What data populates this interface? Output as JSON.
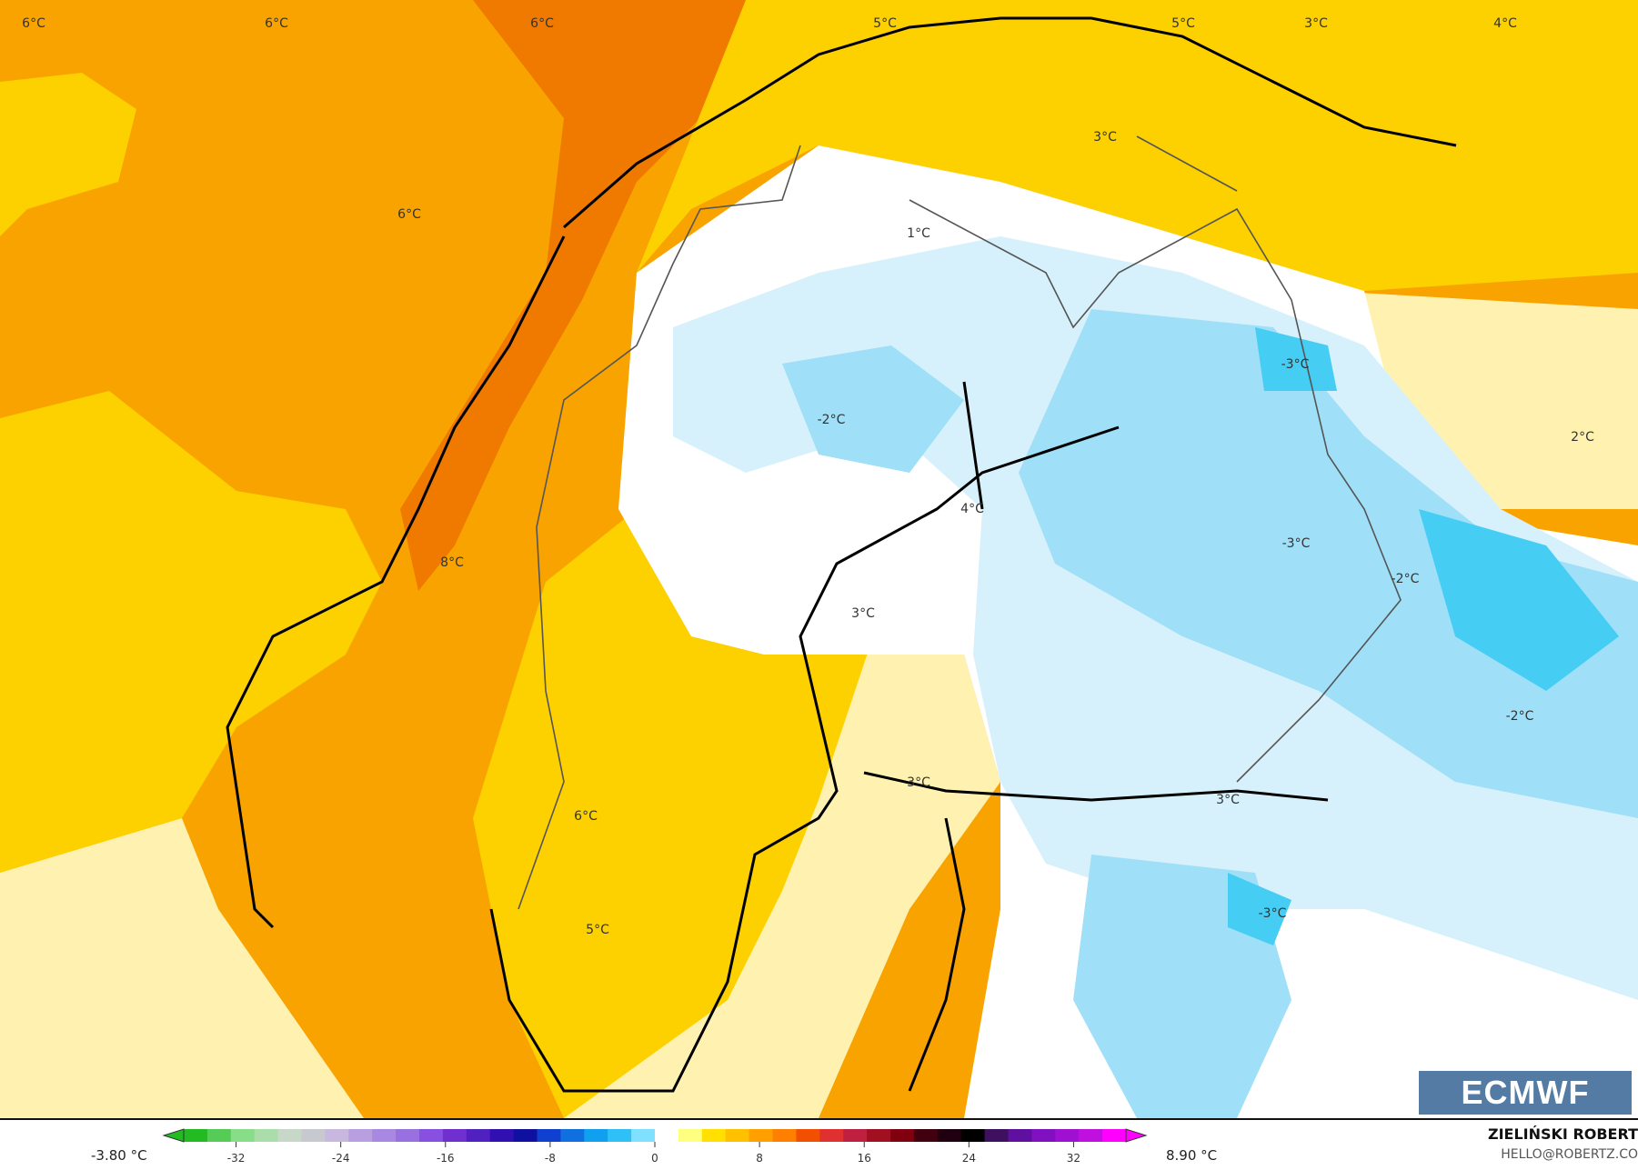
{
  "map": {
    "variable_unit": "°C",
    "colors": {
      "dark_orange": "#f07a00",
      "orange": "#f9a300",
      "yellow": "#fdd000",
      "pale_yellow": "#fff2b0",
      "white": "#ffffff",
      "light_blue": "#d6f1fc",
      "blue": "#9fdff7",
      "cyan": "#45cdf4",
      "coast": "#000000",
      "border": "#555555"
    },
    "labels": [
      "6°C",
      "6°C",
      "6°C",
      "5°C",
      "5°C",
      "3°C",
      "4°C",
      "3°C",
      "6°C",
      "1°C",
      "-3°C",
      "-2°C",
      "2°C",
      "4°C",
      "-3°C",
      "-2°C",
      "8°C",
      "3°C",
      "-2°C",
      "3°C",
      "6°C",
      "3°C",
      "5°C",
      "-3°C"
    ]
  },
  "logo": "ECMWF",
  "colorbar": {
    "min_label": "-3.80 °C",
    "max_label": "8.90 °C",
    "ticks": [
      "-32",
      "-24",
      "-16",
      "-8",
      "0",
      "8",
      "16",
      "24",
      "32"
    ],
    "range": [
      -36,
      36
    ],
    "colors": [
      "#22bb22",
      "#55cc55",
      "#88dd88",
      "#aaddaa",
      "#c8d8c8",
      "#c8c8d0",
      "#c8b8e0",
      "#b8a0e0",
      "#a888e0",
      "#9870e0",
      "#8850e0",
      "#7030d0",
      "#5020c0",
      "#3010b0",
      "#1010a0",
      "#1040d0",
      "#1070e0",
      "#10a0f0",
      "#30c0f8",
      "#80e0ff",
      "#ffffff",
      "#ffff80",
      "#ffe000",
      "#ffc000",
      "#ffa000",
      "#ff8000",
      "#f05000",
      "#e03030",
      "#c02040",
      "#a01020",
      "#800010",
      "#400010",
      "#200010",
      "#000000",
      "#401060",
      "#6010a0",
      "#8010c0",
      "#a010d0",
      "#c010e0",
      "#ff00ff"
    ]
  },
  "credits": {
    "author": "ZIELIŃSKI ROBERT",
    "email": "HELLO@ROBERTZ.CO"
  }
}
